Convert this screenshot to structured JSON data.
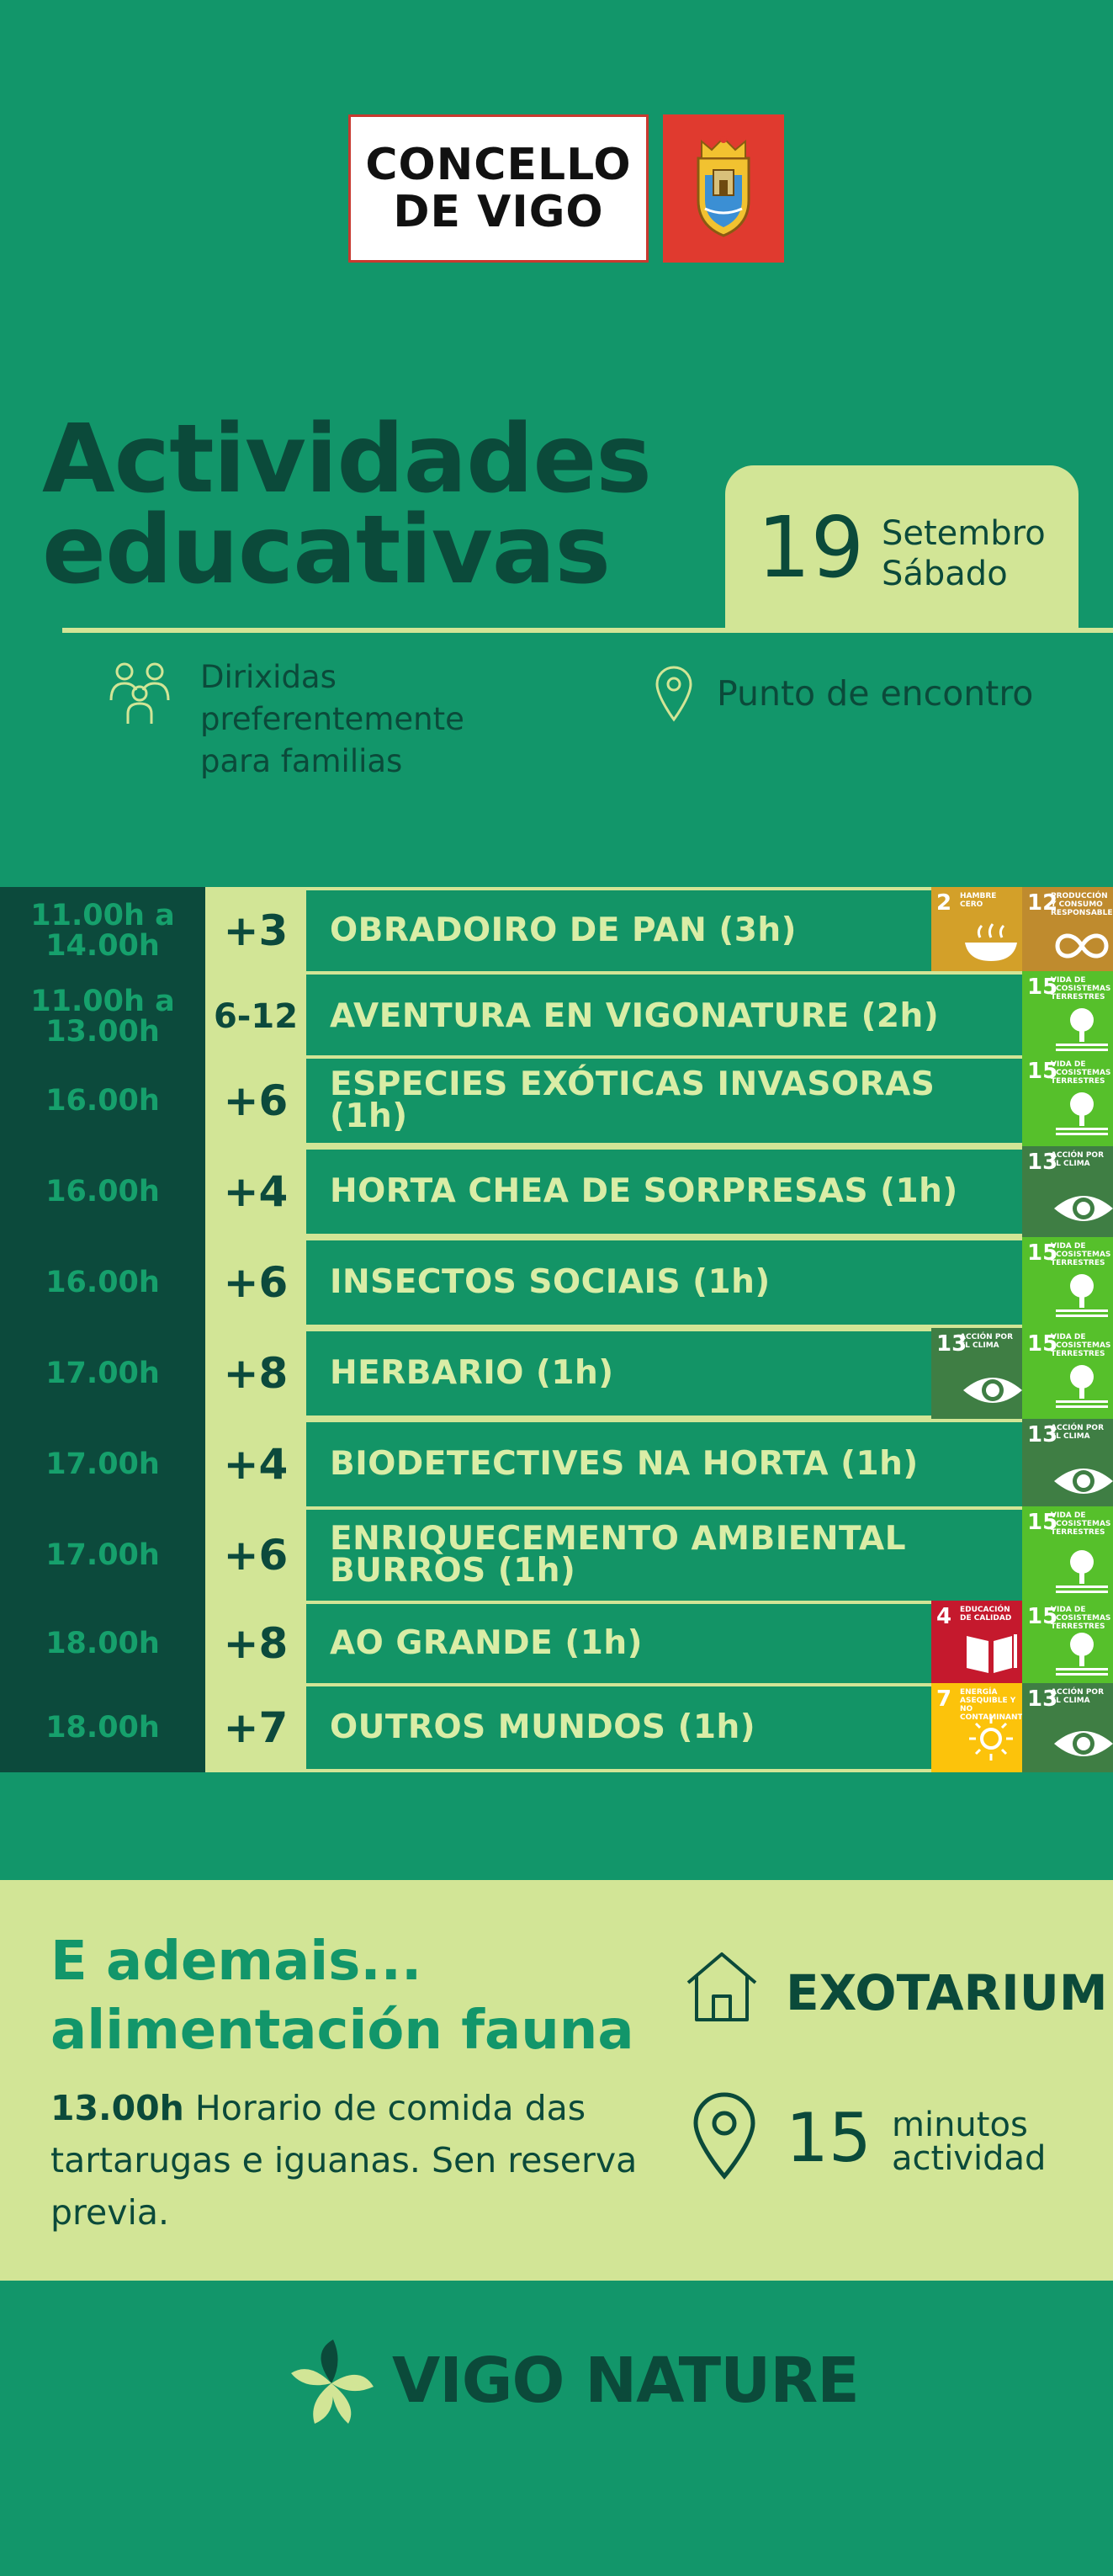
{
  "header": {
    "logo_line1": "CONCELLO",
    "logo_line2": "DE VIGO"
  },
  "title": {
    "line1": "Actividades",
    "line2": "educativas"
  },
  "date": {
    "day_number": "19",
    "month": "Setembro",
    "weekday": "Sábado"
  },
  "info": {
    "audience_line1": "Dirixidas",
    "audience_line2": "preferentemente",
    "audience_line3": "para familias",
    "meeting_point": "Punto de encontro"
  },
  "schedule": [
    {
      "time1": "11.00h a",
      "time2": "14.00h",
      "age": "+3",
      "activity": "OBRADOIRO DE PAN  (3h)",
      "sdgs": [
        {
          "num": "2",
          "text": "HAMBRE CERO",
          "color": "#d3a029",
          "icon": "bowl-icon"
        },
        {
          "num": "12",
          "text": "PRODUCCIÓN Y CONSUMO RESPONSABLES",
          "color": "#bf8b2e",
          "icon": "infinity-icon"
        }
      ]
    },
    {
      "time1": "11.00h a",
      "time2": "13.00h",
      "age": "6-12",
      "activity": "AVENTURA EN VIGONATURE (2h)",
      "sdgs": [
        {
          "num": "15",
          "text": "VIDA DE ECOSISTEMAS TERRESTRES",
          "color": "#56c02b",
          "icon": "tree-icon"
        }
      ]
    },
    {
      "time1": "16.00h",
      "time2": "",
      "age": "+6",
      "activity": "ESPECIES EXÓTICAS INVASORAS (1h)",
      "sdgs": [
        {
          "num": "15",
          "text": "VIDA DE ECOSISTEMAS TERRESTRES",
          "color": "#56c02b",
          "icon": "tree-icon"
        }
      ]
    },
    {
      "time1": "16.00h",
      "time2": "",
      "age": "+4",
      "activity": "HORTA CHEA DE SORPRESAS (1h)",
      "sdgs": [
        {
          "num": "13",
          "text": "ACCIÓN POR EL CLIMA",
          "color": "#3f7e44",
          "icon": "eye-icon"
        }
      ]
    },
    {
      "time1": "16.00h",
      "time2": "",
      "age": "+6",
      "activity": "INSECTOS SOCIAIS (1h)",
      "sdgs": [
        {
          "num": "15",
          "text": "VIDA DE ECOSISTEMAS TERRESTRES",
          "color": "#56c02b",
          "icon": "tree-icon"
        }
      ]
    },
    {
      "time1": "17.00h",
      "time2": "",
      "age": "+8",
      "activity": "HERBARIO (1h)",
      "sdgs": [
        {
          "num": "13",
          "text": "ACCIÓN POR EL CLIMA",
          "color": "#3f7e44",
          "icon": "eye-icon"
        },
        {
          "num": "15",
          "text": "VIDA DE ECOSISTEMAS TERRESTRES",
          "color": "#56c02b",
          "icon": "tree-icon"
        }
      ]
    },
    {
      "time1": "17.00h",
      "time2": "",
      "age": "+4",
      "activity": "BIODETECTIVES NA HORTA (1h)",
      "sdgs": [
        {
          "num": "13",
          "text": "ACCIÓN POR EL CLIMA",
          "color": "#3f7e44",
          "icon": "eye-icon"
        }
      ]
    },
    {
      "time1": "17.00h",
      "time2": "",
      "age": "+6",
      "activity": "ENRIQUECEMENTO AMBIENTAL",
      "activity2": "BURROS (1h)",
      "sdgs": [
        {
          "num": "15",
          "text": "VIDA DE ECOSISTEMAS TERRESTRES",
          "color": "#56c02b",
          "icon": "tree-icon"
        }
      ]
    },
    {
      "time1": "18.00h",
      "time2": "",
      "age": "+8",
      "activity": "AO GRANDE (1h)",
      "sdgs": [
        {
          "num": "4",
          "text": "EDUCACIÓN DE CALIDAD",
          "color": "#c5192d",
          "icon": "book-icon"
        },
        {
          "num": "15",
          "text": "VIDA DE ECOSISTEMAS TERRESTRES",
          "color": "#56c02b",
          "icon": "tree-icon"
        }
      ]
    },
    {
      "time1": "18.00h",
      "time2": "",
      "age": "+7",
      "activity": "OUTROS MUNDOS (1h)",
      "sdgs": [
        {
          "num": "7",
          "text": "ENERGÍA ASEQUIBLE Y NO CONTAMINANTE",
          "color": "#fcc30b",
          "icon": "sun-icon"
        },
        {
          "num": "13",
          "text": "ACCIÓN POR EL CLIMA",
          "color": "#3f7e44",
          "icon": "eye-icon"
        }
      ]
    }
  ],
  "extra": {
    "title_line1": "E ademais...",
    "title_line2": "alimentación fauna",
    "time": "13.00h",
    "text": " Horario de comida das tartarugas e iguanas. Sen reserva previa.",
    "place": "EXOTARIUM",
    "duration_num": "15",
    "duration_l1": "minutos",
    "duration_l2": "actividad"
  },
  "footer": {
    "brand": "VIGO NATURE"
  }
}
